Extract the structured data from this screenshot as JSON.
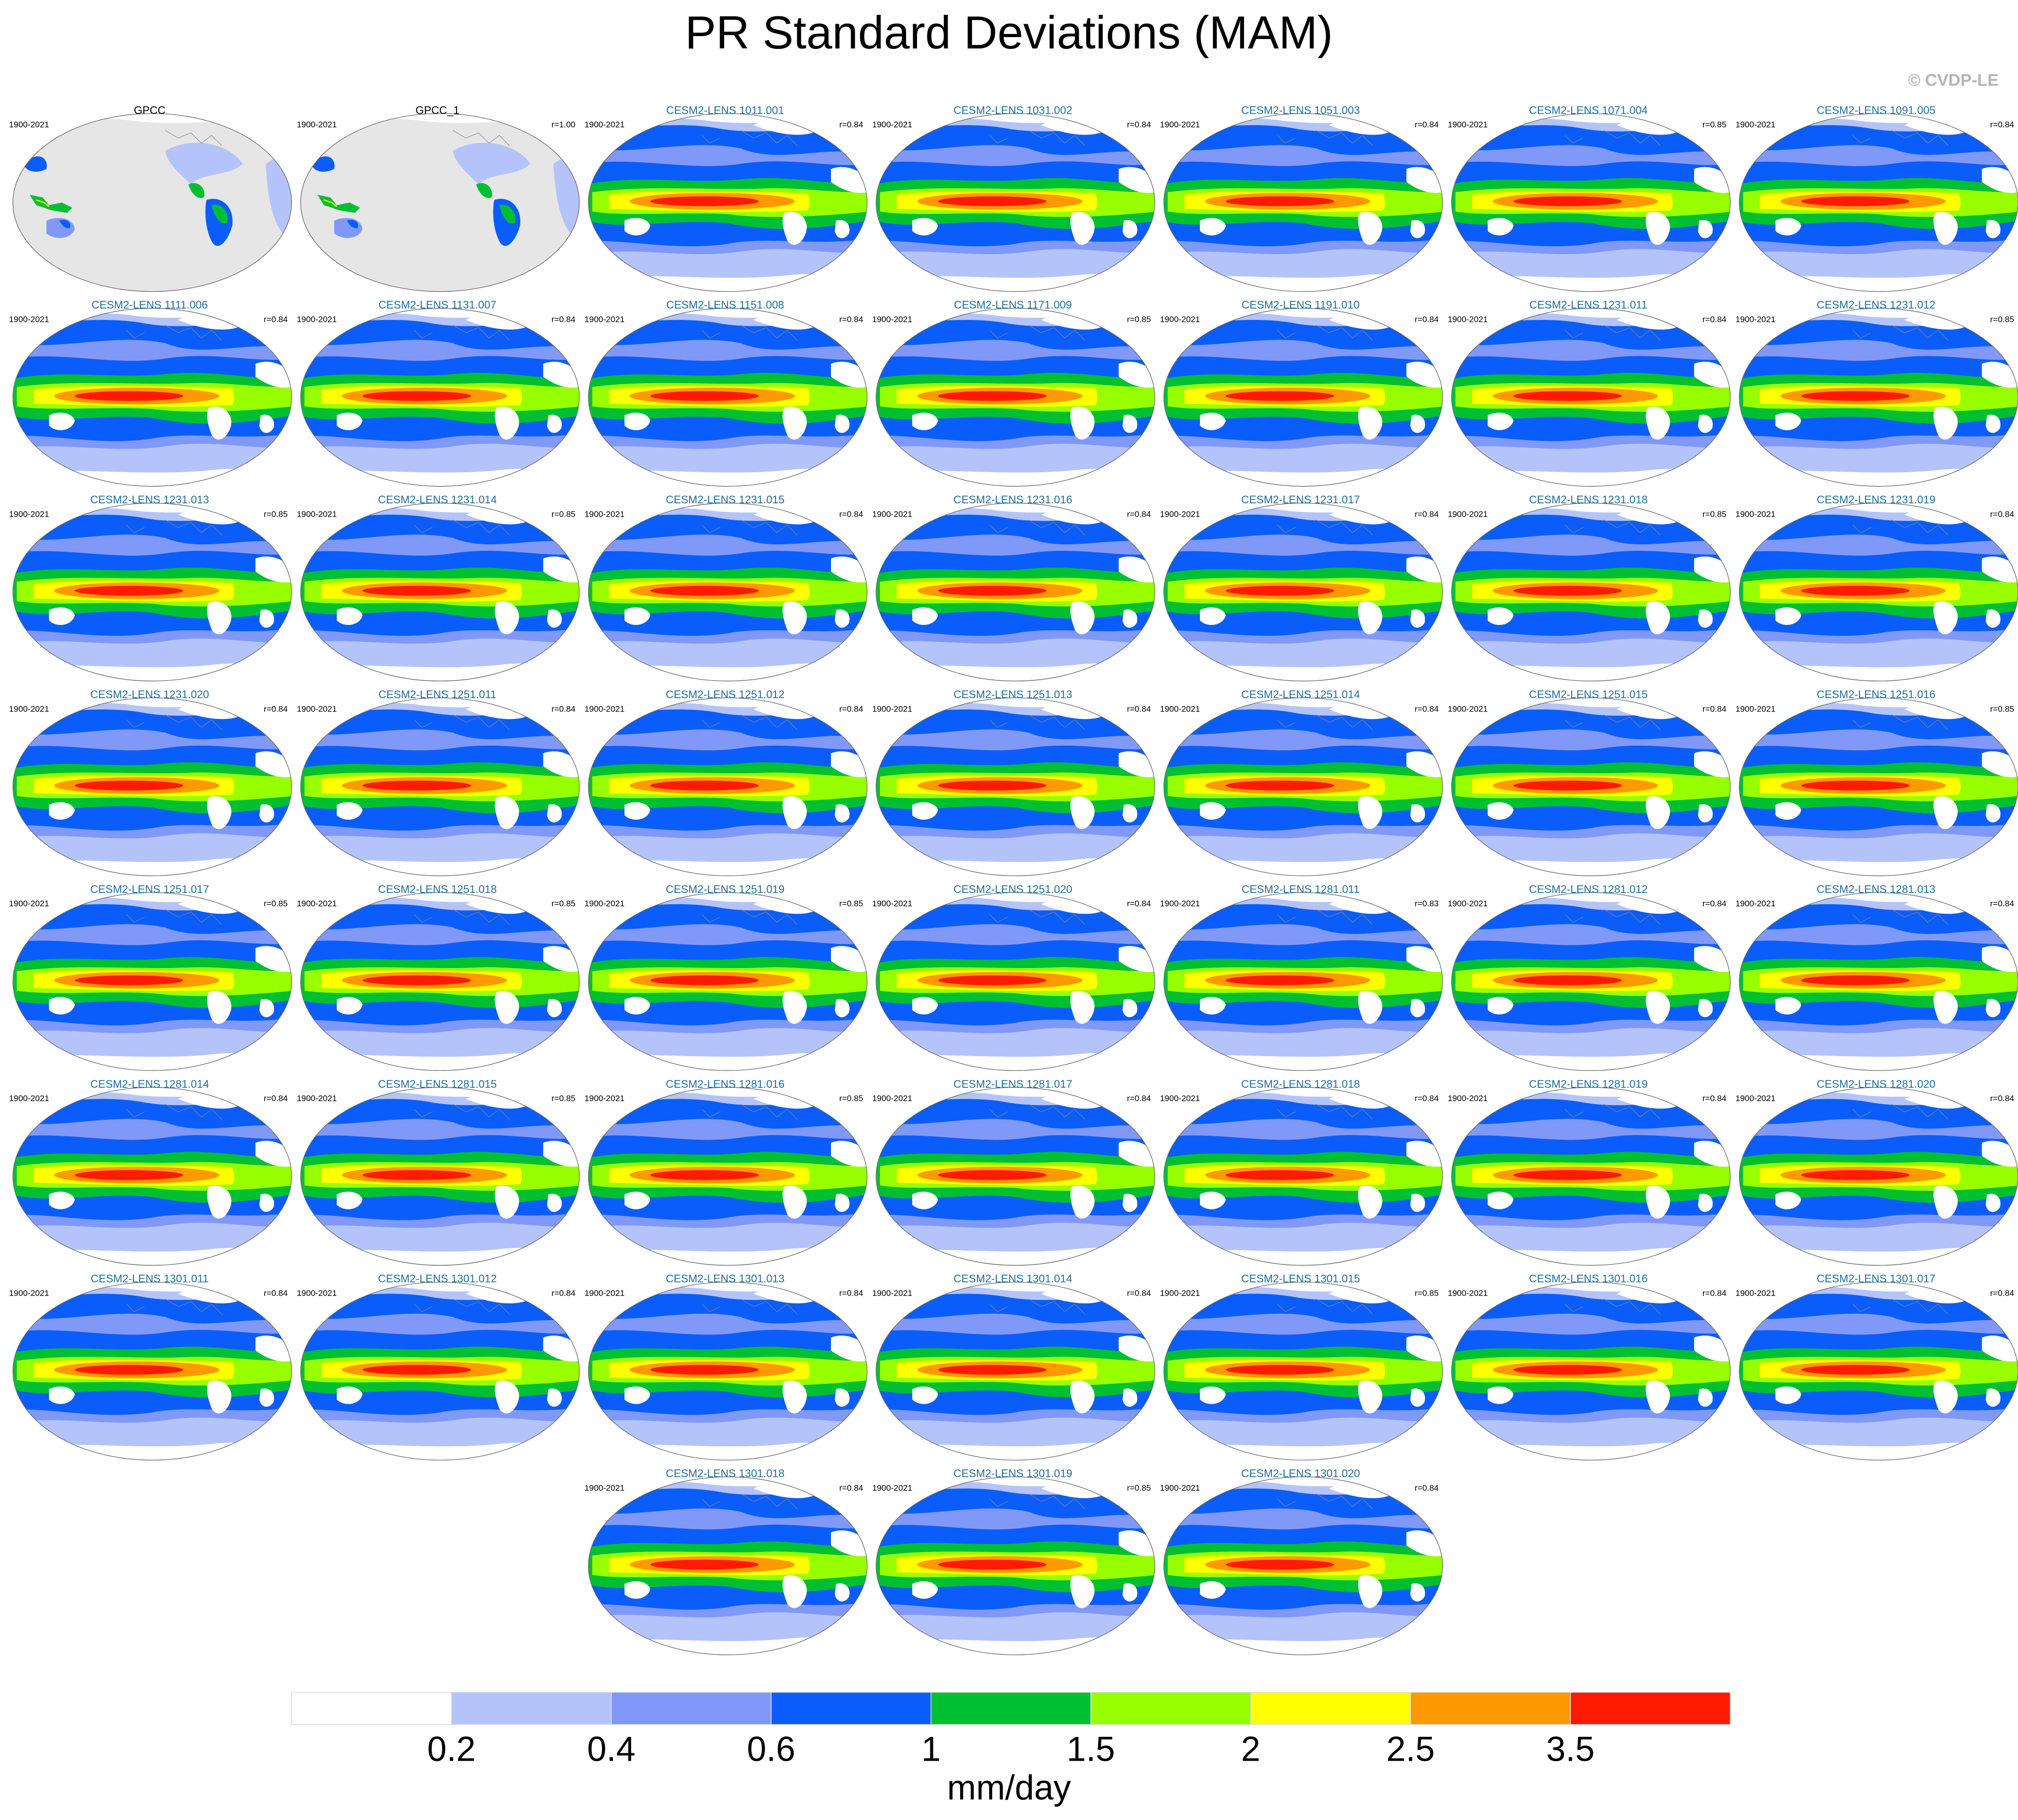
{
  "title": "PR Standard Deviations (MAM)",
  "watermark": "© CVDP-LE",
  "panels": [
    {
      "title": "GPCC",
      "period": "1900-2021",
      "title_color": "#000000"
    },
    {
      "title": "GPCC_1",
      "period": "1900-2021",
      "r": "r=1.00",
      "title_color": "#000000"
    },
    {
      "title": "CESM2-LENS 1011.001",
      "period": "1900-2021",
      "r": "r=0.84",
      "title_color": "#1f6e9e"
    },
    {
      "title": "CESM2-LENS 1031.002",
      "period": "1900-2021",
      "r": "r=0.84",
      "title_color": "#1f6e9e"
    },
    {
      "title": "CESM2-LENS 1051.003",
      "period": "1900-2021",
      "r": "r=0.84",
      "title_color": "#1f6e9e"
    },
    {
      "title": "CESM2-LENS 1071.004",
      "period": "1900-2021",
      "r": "r=0.85",
      "title_color": "#1f6e9e"
    },
    {
      "title": "CESM2-LENS 1091.005",
      "period": "1900-2021",
      "r": "r=0.84",
      "title_color": "#1f6e9e"
    },
    {
      "title": "CESM2-LENS 1111.006",
      "period": "1900-2021",
      "r": "r=0.84",
      "title_color": "#1f6e9e"
    },
    {
      "title": "CESM2-LENS 1131.007",
      "period": "1900-2021",
      "r": "r=0.84",
      "title_color": "#1f6e9e"
    },
    {
      "title": "CESM2-LENS 1151.008",
      "period": "1900-2021",
      "r": "r=0.84",
      "title_color": "#1f6e9e"
    },
    {
      "title": "CESM2-LENS 1171.009",
      "period": "1900-2021",
      "r": "r=0.85",
      "title_color": "#1f6e9e"
    },
    {
      "title": "CESM2-LENS 1191.010",
      "period": "1900-2021",
      "r": "r=0.84",
      "title_color": "#1f6e9e"
    },
    {
      "title": "CESM2-LENS 1231.011",
      "period": "1900-2021",
      "r": "r=0.84",
      "title_color": "#1f6e9e"
    },
    {
      "title": "CESM2-LENS 1231.012",
      "period": "1900-2021",
      "r": "r=0.85",
      "title_color": "#1f6e9e"
    },
    {
      "title": "CESM2-LENS 1231.013",
      "period": "1900-2021",
      "r": "r=0.85",
      "title_color": "#1f6e9e"
    },
    {
      "title": "CESM2-LENS 1231.014",
      "period": "1900-2021",
      "r": "r=0.85",
      "title_color": "#1f6e9e"
    },
    {
      "title": "CESM2-LENS 1231.015",
      "period": "1900-2021",
      "r": "r=0.84",
      "title_color": "#1f6e9e"
    },
    {
      "title": "CESM2-LENS 1231.016",
      "period": "1900-2021",
      "r": "r=0.84",
      "title_color": "#1f6e9e"
    },
    {
      "title": "CESM2-LENS 1231.017",
      "period": "1900-2021",
      "r": "r=0.84",
      "title_color": "#1f6e9e"
    },
    {
      "title": "CESM2-LENS 1231.018",
      "period": "1900-2021",
      "r": "r=0.85",
      "title_color": "#1f6e9e"
    },
    {
      "title": "CESM2-LENS 1231.019",
      "period": "1900-2021",
      "r": "r=0.84",
      "title_color": "#1f6e9e"
    },
    {
      "title": "CESM2-LENS 1231.020",
      "period": "1900-2021",
      "r": "r=0.84",
      "title_color": "#1f6e9e"
    },
    {
      "title": "CESM2-LENS 1251.011",
      "period": "1900-2021",
      "r": "r=0.84",
      "title_color": "#1f6e9e"
    },
    {
      "title": "CESM2-LENS 1251.012",
      "period": "1900-2021",
      "r": "r=0.84",
      "title_color": "#1f6e9e"
    },
    {
      "title": "CESM2-LENS 1251.013",
      "period": "1900-2021",
      "r": "r=0.84",
      "title_color": "#1f6e9e"
    },
    {
      "title": "CESM2-LENS 1251.014",
      "period": "1900-2021",
      "r": "r=0.84",
      "title_color": "#1f6e9e"
    },
    {
      "title": "CESM2-LENS 1251.015",
      "period": "1900-2021",
      "r": "r=0.84",
      "title_color": "#1f6e9e"
    },
    {
      "title": "CESM2-LENS 1251.016",
      "period": "1900-2021",
      "r": "r=0.85",
      "title_color": "#1f6e9e"
    },
    {
      "title": "CESM2-LENS 1251.017",
      "period": "1900-2021",
      "r": "r=0.85",
      "title_color": "#1f6e9e"
    },
    {
      "title": "CESM2-LENS 1251.018",
      "period": "1900-2021",
      "r": "r=0.85",
      "title_color": "#1f6e9e"
    },
    {
      "title": "CESM2-LENS 1251.019",
      "period": "1900-2021",
      "r": "r=0.85",
      "title_color": "#1f6e9e"
    },
    {
      "title": "CESM2-LENS 1251.020",
      "period": "1900-2021",
      "r": "r=0.84",
      "title_color": "#1f6e9e"
    },
    {
      "title": "CESM2-LENS 1281.011",
      "period": "1900-2021",
      "r": "r=0.83",
      "title_color": "#1f6e9e"
    },
    {
      "title": "CESM2-LENS 1281.012",
      "period": "1900-2021",
      "r": "r=0.84",
      "title_color": "#1f6e9e"
    },
    {
      "title": "CESM2-LENS 1281.013",
      "period": "1900-2021",
      "r": "r=0.84",
      "title_color": "#1f6e9e"
    },
    {
      "title": "CESM2-LENS 1281.014",
      "period": "1900-2021",
      "r": "r=0.84",
      "title_color": "#1f6e9e"
    },
    {
      "title": "CESM2-LENS 1281.015",
      "period": "1900-2021",
      "r": "r=0.85",
      "title_color": "#1f6e9e"
    },
    {
      "title": "CESM2-LENS 1281.016",
      "period": "1900-2021",
      "r": "r=0.85",
      "title_color": "#1f6e9e"
    },
    {
      "title": "CESM2-LENS 1281.017",
      "period": "1900-2021",
      "r": "r=0.84",
      "title_color": "#1f6e9e"
    },
    {
      "title": "CESM2-LENS 1281.018",
      "period": "1900-2021",
      "r": "r=0.84",
      "title_color": "#1f6e9e"
    },
    {
      "title": "CESM2-LENS 1281.019",
      "period": "1900-2021",
      "r": "r=0.84",
      "title_color": "#1f6e9e"
    },
    {
      "title": "CESM2-LENS 1281.020",
      "period": "1900-2021",
      "r": "r=0.84",
      "title_color": "#1f6e9e"
    },
    {
      "title": "CESM2-LENS 1301.011",
      "period": "1900-2021",
      "r": "r=0.84",
      "title_color": "#1f6e9e"
    },
    {
      "title": "CESM2-LENS 1301.012",
      "period": "1900-2021",
      "r": "r=0.84",
      "title_color": "#1f6e9e"
    },
    {
      "title": "CESM2-LENS 1301.013",
      "period": "1900-2021",
      "r": "r=0.84",
      "title_color": "#1f6e9e"
    },
    {
      "title": "CESM2-LENS 1301.014",
      "period": "1900-2021",
      "r": "r=0.84",
      "title_color": "#1f6e9e"
    },
    {
      "title": "CESM2-LENS 1301.015",
      "period": "1900-2021",
      "r": "r=0.85",
      "title_color": "#1f6e9e"
    },
    {
      "title": "CESM2-LENS 1301.016",
      "period": "1900-2021",
      "r": "r=0.84",
      "title_color": "#1f6e9e"
    },
    {
      "title": "CESM2-LENS 1301.017",
      "period": "1900-2021",
      "r": "r=0.84",
      "title_color": "#1f6e9e"
    },
    {
      "title": "CESM2-LENS 1301.018",
      "period": "1900-2021",
      "r": "r=0.84",
      "title_color": "#1f6e9e"
    },
    {
      "title": "CESM2-LENS 1301.019",
      "period": "1900-2021",
      "r": "r=0.85",
      "title_color": "#1f6e9e"
    },
    {
      "title": "CESM2-LENS 1301.020",
      "period": "1900-2021",
      "r": "r=0.84",
      "title_color": "#1f6e9e"
    }
  ],
  "colorbar": {
    "colors": [
      "#ffffff",
      "#b4c4fa",
      "#8099f8",
      "#0a5dfa",
      "#00c032",
      "#98ff00",
      "#ffff00",
      "#ff9900",
      "#ff1a00"
    ],
    "labels": [
      0.2,
      0.4,
      0.6,
      1,
      1.5,
      2,
      2.5,
      3.5
    ],
    "units": "mm/day"
  }
}
